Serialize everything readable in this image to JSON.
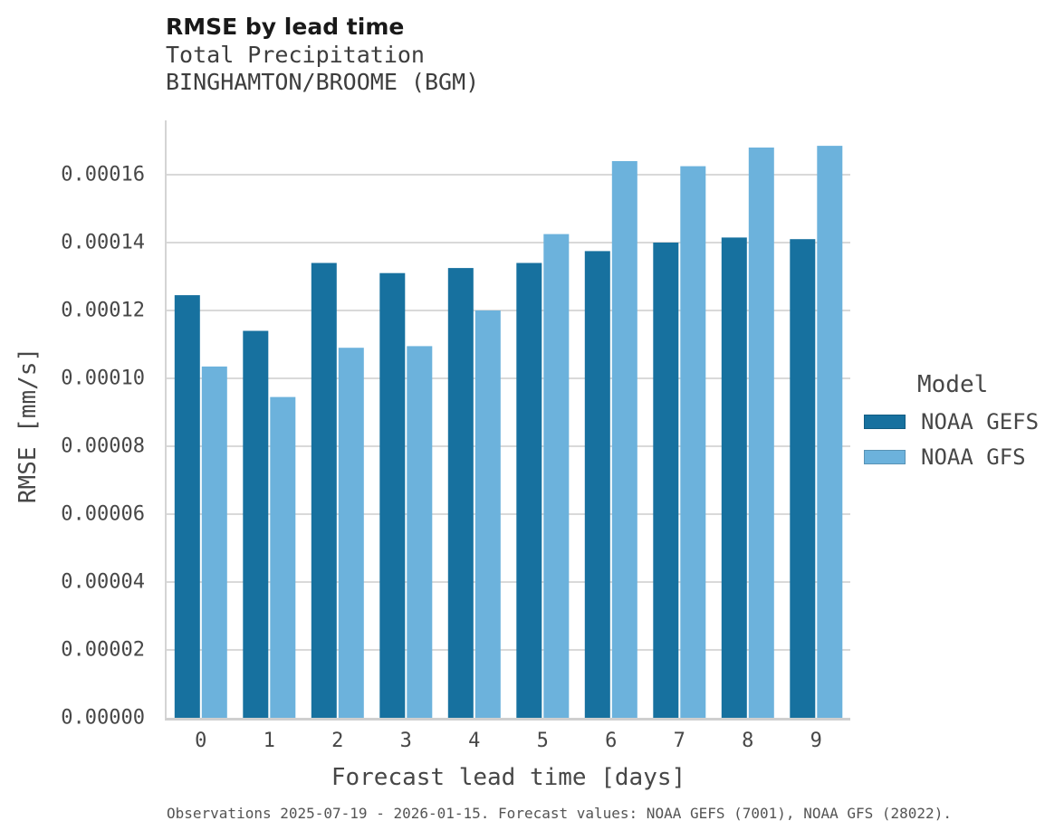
{
  "header": {
    "title": "RMSE by lead time",
    "subtitle_variable": "Total Precipitation",
    "subtitle_location": "BINGHAMTON/BROOME (BGM)"
  },
  "colors": {
    "noaa_gefs": "#17719f",
    "noaa_gfs": "#6cb2dc",
    "gridline": "#d9d9d9"
  },
  "legend": {
    "title": "Model",
    "items": [
      {
        "label": "NOAA GEFS",
        "color": "#17719f"
      },
      {
        "label": "NOAA GFS",
        "color": "#6cb2dc"
      }
    ]
  },
  "caption": {
    "text": "Observations 2025-07-19 - 2026-01-15. Forecast values: NOAA GEFS (7001), NOAA GFS (28022)."
  },
  "chart_data": {
    "type": "bar",
    "title": "RMSE by lead time",
    "subtitle": [
      "Total Precipitation",
      "BINGHAMTON/BROOME (BGM)"
    ],
    "xlabel": "Forecast lead time [days]",
    "ylabel": "RMSE [mm/s]",
    "categories": [
      "0",
      "1",
      "2",
      "3",
      "4",
      "5",
      "6",
      "7",
      "8",
      "9"
    ],
    "series": [
      {
        "name": "NOAA GEFS",
        "color": "#17719f",
        "values": [
          0.0001245,
          0.000114,
          0.000134,
          0.000131,
          0.0001325,
          0.000134,
          0.0001375,
          0.00014,
          0.0001415,
          0.000141
        ]
      },
      {
        "name": "NOAA GFS",
        "color": "#6cb2dc",
        "values": [
          0.0001035,
          9.45e-05,
          0.000109,
          0.0001095,
          0.00012,
          0.0001425,
          0.000164,
          0.0001625,
          0.000168,
          0.0001685
        ]
      }
    ],
    "ylim": [
      0,
      0.000176
    ],
    "yticks": {
      "values": [
        0,
        2e-05,
        4e-05,
        6e-05,
        8e-05,
        0.0001,
        0.00012,
        0.00014,
        0.00016
      ],
      "labels": [
        "0.00000",
        "0.00002",
        "0.00004",
        "0.00006",
        "0.00008",
        "0.00010",
        "0.00012",
        "0.00014",
        "0.00016"
      ]
    },
    "grid": "horizontal",
    "legend_position": "right",
    "legend_title": "Model"
  }
}
